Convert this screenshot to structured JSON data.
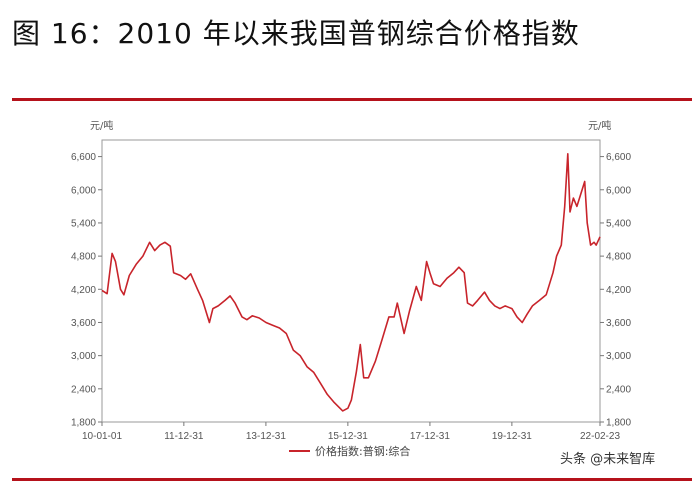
{
  "figure_title": "图 16：2010 年以来我国普钢综合价格指数",
  "watermark": "头条 @未来智库",
  "chart_data": {
    "type": "line",
    "title": "",
    "xlabel": "",
    "ylabel_left": "元/吨",
    "ylabel_right": "元/吨",
    "ylim": [
      1800,
      6900
    ],
    "yticks": [
      1800,
      2400,
      3000,
      3600,
      4200,
      4800,
      5400,
      6000,
      6600
    ],
    "ytick_labels": [
      "1,800",
      "2,400",
      "3,000",
      "3,600",
      "4,200",
      "4,800",
      "5,400",
      "6,000",
      "6,600"
    ],
    "xlim": [
      "2010-01-01",
      "2022-02-23"
    ],
    "xticks": [
      "2010-01-01",
      "2011-12-31",
      "2013-12-31",
      "2015-12-31",
      "2017-12-31",
      "2019-12-31",
      "2022-02-23"
    ],
    "xtick_labels": [
      "10-01-01",
      "11-12-31",
      "13-12-31",
      "15-12-31",
      "17-12-31",
      "19-12-31",
      "22-02-23"
    ],
    "legend_position": "bottom",
    "line_color": "#c8242b",
    "series": [
      {
        "name": "价格指数:普钢:综合",
        "points": [
          [
            "2010-01-01",
            4180
          ],
          [
            "2010-02-15",
            4120
          ],
          [
            "2010-04-01",
            4850
          ],
          [
            "2010-05-01",
            4700
          ],
          [
            "2010-06-15",
            4200
          ],
          [
            "2010-07-15",
            4100
          ],
          [
            "2010-09-01",
            4450
          ],
          [
            "2010-11-01",
            4650
          ],
          [
            "2010-12-31",
            4800
          ],
          [
            "2011-03-01",
            5050
          ],
          [
            "2011-04-15",
            4900
          ],
          [
            "2011-06-01",
            5000
          ],
          [
            "2011-07-15",
            5050
          ],
          [
            "2011-09-01",
            4980
          ],
          [
            "2011-10-01",
            4500
          ],
          [
            "2011-12-01",
            4450
          ],
          [
            "2012-01-15",
            4380
          ],
          [
            "2012-03-01",
            4480
          ],
          [
            "2012-05-01",
            4200
          ],
          [
            "2012-06-15",
            4000
          ],
          [
            "2012-08-15",
            3600
          ],
          [
            "2012-09-15",
            3850
          ],
          [
            "2012-11-01",
            3900
          ],
          [
            "2013-01-01",
            4000
          ],
          [
            "2013-02-15",
            4080
          ],
          [
            "2013-04-01",
            3950
          ],
          [
            "2013-06-01",
            3700
          ],
          [
            "2013-07-15",
            3650
          ],
          [
            "2013-09-01",
            3720
          ],
          [
            "2013-11-01",
            3680
          ],
          [
            "2014-01-01",
            3600
          ],
          [
            "2014-03-01",
            3550
          ],
          [
            "2014-05-01",
            3500
          ],
          [
            "2014-07-01",
            3400
          ],
          [
            "2014-09-01",
            3100
          ],
          [
            "2014-11-01",
            3000
          ],
          [
            "2015-01-01",
            2800
          ],
          [
            "2015-03-01",
            2700
          ],
          [
            "2015-05-01",
            2500
          ],
          [
            "2015-07-01",
            2300
          ],
          [
            "2015-09-01",
            2150
          ],
          [
            "2015-11-15",
            2000
          ],
          [
            "2015-12-31",
            2050
          ],
          [
            "2016-02-01",
            2200
          ],
          [
            "2016-03-15",
            2700
          ],
          [
            "2016-04-20",
            3200
          ],
          [
            "2016-05-20",
            2600
          ],
          [
            "2016-07-01",
            2600
          ],
          [
            "2016-09-01",
            2900
          ],
          [
            "2016-11-01",
            3300
          ],
          [
            "2016-12-31",
            3700
          ],
          [
            "2017-02-15",
            3700
          ],
          [
            "2017-03-15",
            3950
          ],
          [
            "2017-05-15",
            3400
          ],
          [
            "2017-07-01",
            3800
          ],
          [
            "2017-09-01",
            4250
          ],
          [
            "2017-10-15",
            4000
          ],
          [
            "2017-12-01",
            4700
          ],
          [
            "2017-12-31",
            4500
          ],
          [
            "2018-02-01",
            4300
          ],
          [
            "2018-04-01",
            4250
          ],
          [
            "2018-06-01",
            4400
          ],
          [
            "2018-08-01",
            4500
          ],
          [
            "2018-09-15",
            4600
          ],
          [
            "2018-11-01",
            4500
          ],
          [
            "2018-12-01",
            3950
          ],
          [
            "2019-01-15",
            3900
          ],
          [
            "2019-03-01",
            4000
          ],
          [
            "2019-05-01",
            4150
          ],
          [
            "2019-06-15",
            4000
          ],
          [
            "2019-08-01",
            3900
          ],
          [
            "2019-09-15",
            3850
          ],
          [
            "2019-11-01",
            3900
          ],
          [
            "2019-12-31",
            3850
          ],
          [
            "2020-02-15",
            3700
          ],
          [
            "2020-04-01",
            3600
          ],
          [
            "2020-05-15",
            3750
          ],
          [
            "2020-07-01",
            3900
          ],
          [
            "2020-09-01",
            4000
          ],
          [
            "2020-11-01",
            4100
          ],
          [
            "2020-12-31",
            4500
          ],
          [
            "2021-02-01",
            4800
          ],
          [
            "2021-03-15",
            5000
          ],
          [
            "2021-04-15",
            5700
          ],
          [
            "2021-05-12",
            6650
          ],
          [
            "2021-06-01",
            5600
          ],
          [
            "2021-07-01",
            5850
          ],
          [
            "2021-08-01",
            5700
          ],
          [
            "2021-09-01",
            5900
          ],
          [
            "2021-10-10",
            6150
          ],
          [
            "2021-11-01",
            5400
          ],
          [
            "2021-12-01",
            5000
          ],
          [
            "2022-01-01",
            5050
          ],
          [
            "2022-01-20",
            5000
          ],
          [
            "2022-02-23",
            5150
          ]
        ]
      }
    ]
  }
}
